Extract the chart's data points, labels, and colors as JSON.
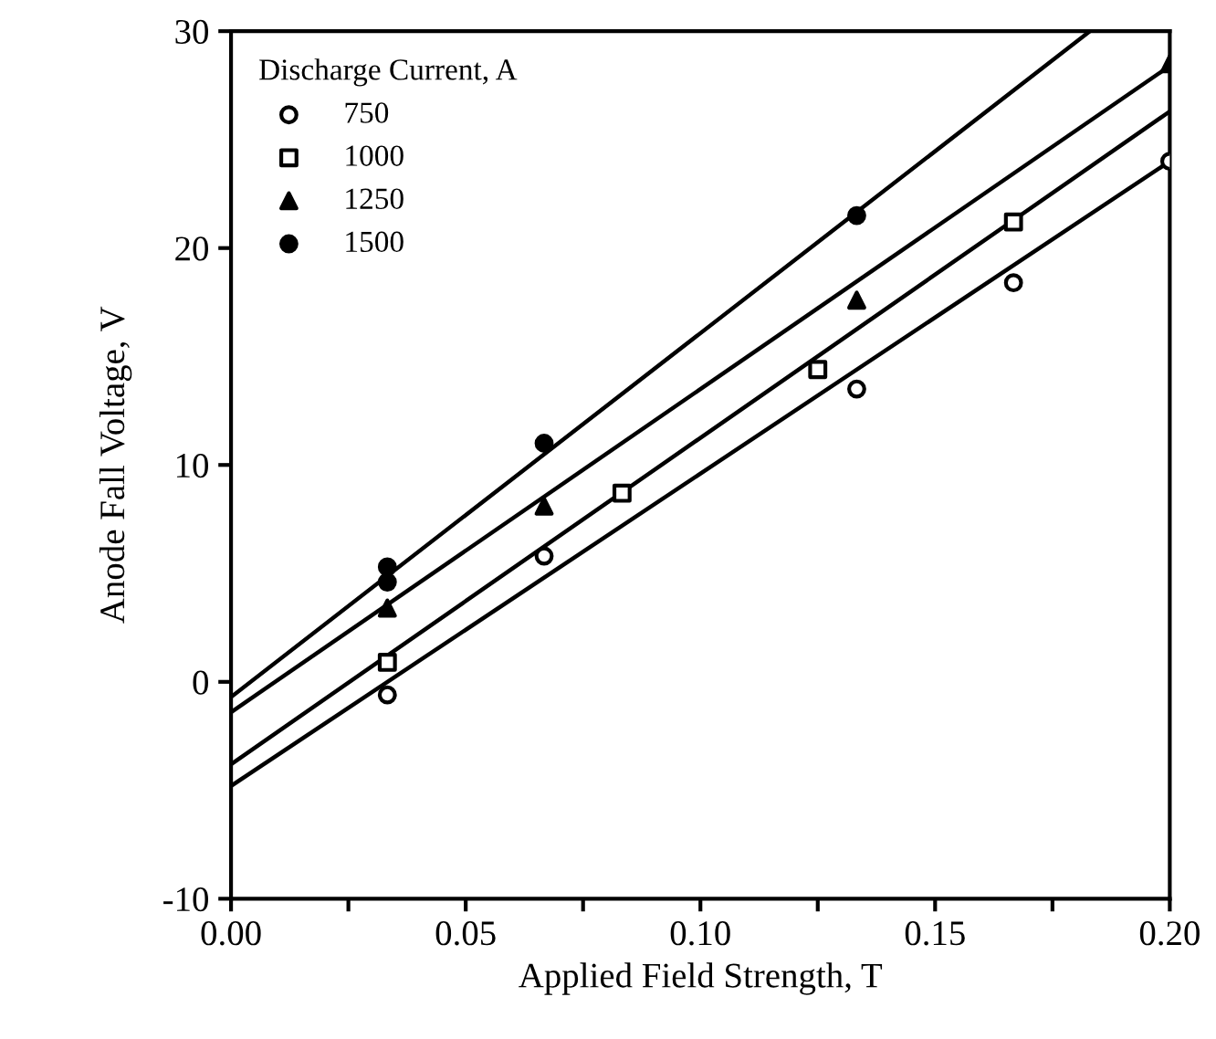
{
  "chart_data": {
    "type": "scatter",
    "xlabel": "Applied Field Strength, T",
    "ylabel": "Anode Fall Voltage, V",
    "legend_title": "Discharge Current, A",
    "legend": "top left",
    "grid": false,
    "xlim": [
      0,
      0.2
    ],
    "ylim": [
      -10,
      30
    ],
    "xticks": [
      {
        "value": 0,
        "label": "0.00"
      },
      {
        "value": 0.025,
        "label": null
      },
      {
        "value": 0.05,
        "label": "0.05"
      },
      {
        "value": 0.075,
        "label": null
      },
      {
        "value": 0.1,
        "label": "0.10"
      },
      {
        "value": 0.125,
        "label": null
      },
      {
        "value": 0.15,
        "label": "0.15"
      },
      {
        "value": 0.175,
        "label": null
      },
      {
        "value": 0.2,
        "label": "0.20"
      }
    ],
    "yticks": [
      {
        "value": -10,
        "label": "-10"
      },
      0,
      10,
      20,
      30
    ],
    "series": [
      {
        "name": "750",
        "marker": "circle",
        "color": "#000000",
        "x": [
          0.0333,
          0.0667,
          0.1333,
          0.1667,
          0.2
        ],
        "values": [
          -0.6,
          5.8,
          13.5,
          18.4,
          24.0
        ]
      },
      {
        "name": "1000",
        "marker": "square",
        "color": "#000000",
        "x": [
          0.0333,
          0.0833,
          0.125,
          0.1667
        ],
        "values": [
          0.9,
          8.7,
          14.4,
          21.2
        ]
      },
      {
        "name": "1250",
        "marker": "triangle",
        "color": "#000000",
        "x": [
          0.0333,
          0.0667,
          0.1333,
          0.2
        ],
        "values": [
          3.4,
          8.1,
          17.6,
          28.5
        ]
      },
      {
        "name": "1500",
        "marker": "circle",
        "color": "#000000",
        "x": [
          0.0333,
          0.0333,
          0.0667,
          0.1333
        ],
        "values": [
          5.3,
          4.6,
          11.0,
          21.5
        ]
      },
      {
        "type": "line",
        "color": "#000000",
        "x": [
          0,
          0.2
        ],
        "values": [
          -4.8,
          24.0
        ]
      },
      {
        "type": "line",
        "color": "#000000",
        "x": [
          0,
          0.2
        ],
        "values": [
          -3.8,
          26.3
        ]
      },
      {
        "type": "line",
        "color": "#000000",
        "x": [
          0,
          0.2
        ],
        "values": [
          -1.4,
          28.4
        ]
      },
      {
        "type": "line",
        "color": "#000000",
        "x": [
          0,
          0.183
        ],
        "values": [
          -0.7,
          30
        ]
      }
    ]
  }
}
